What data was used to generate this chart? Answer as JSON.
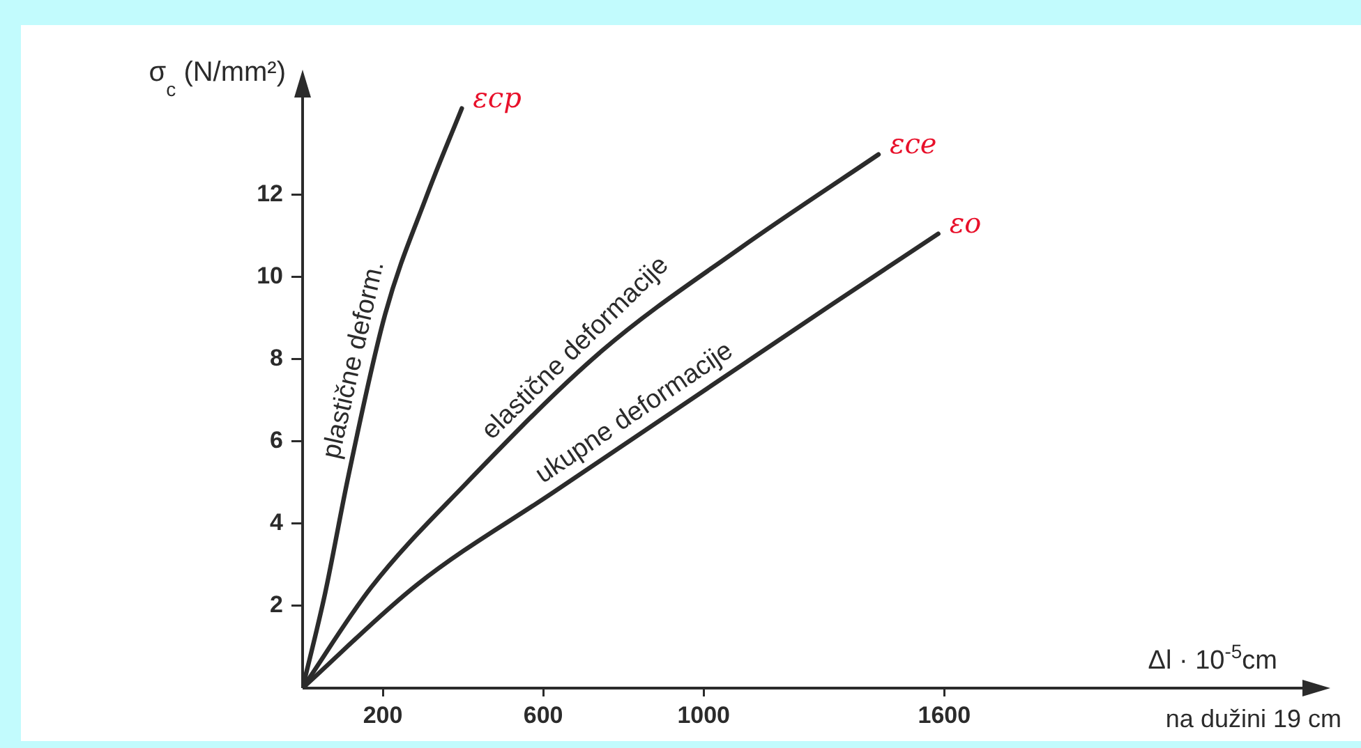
{
  "chart_data": {
    "type": "line",
    "ylabel": "σ$_{c}$ (N/mm²)",
    "xlabel": "Δl · 10$^{-5}$cm",
    "xlim": [
      0,
      2500
    ],
    "xticks": [
      200,
      600,
      1000,
      1600
    ],
    "ylim": [
      0,
      14.5
    ],
    "yticks": [
      2,
      4,
      6,
      8,
      10,
      12
    ],
    "grid": false,
    "legend": false,
    "marker": "none",
    "line_style": "solid",
    "series": [
      {
        "name": "εcp",
        "color": "#2b2b2b",
        "x": [
          0,
          56,
          114,
          206,
          309,
          397
        ],
        "values": [
          0,
          2.3,
          5.15,
          9.1,
          11.96,
          14.1
        ]
      },
      {
        "name": "εce",
        "color": "#2b2b2b",
        "x": [
          0,
          171,
          401,
          746,
          1091,
          1436
        ],
        "values": [
          0,
          2.45,
          4.91,
          8.2,
          10.7,
          12.98
        ]
      },
      {
        "name": "εo",
        "color": "#2b2b2b",
        "x": [
          0,
          286,
          631,
          976,
          1321,
          1585
        ],
        "values": [
          0,
          2.52,
          4.8,
          7.07,
          9.34,
          11.05
        ]
      }
    ],
    "annotations": [
      "plastične deform.",
      "elastične deformacije",
      "ukupne deformacije",
      "na dužini 19 cm"
    ]
  }
}
